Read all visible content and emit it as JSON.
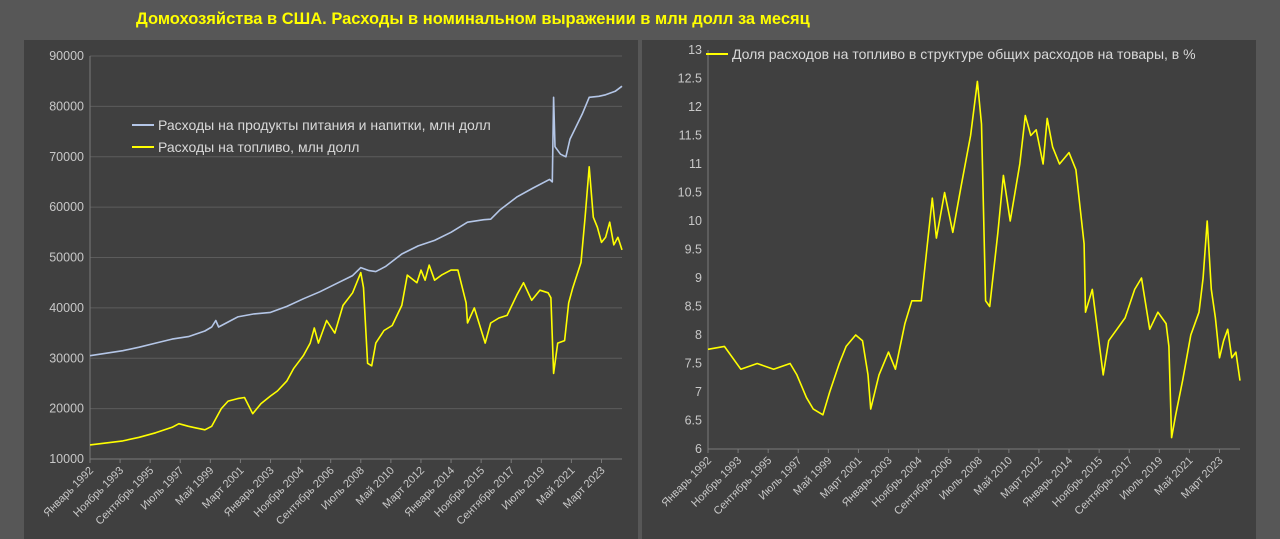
{
  "page_title": "Домохозяйства в США. Расходы в номинальном выражении в млн долл за месяц",
  "colors": {
    "food": "#b4c6e7",
    "fuel": "#ffff00",
    "background": "#404040",
    "gridline": "#5c5c5c"
  },
  "x_tick_labels": [
    "Январь 1992",
    "Ноябрь 1993",
    "Сентябрь 1995",
    "Июль 1997",
    "Май 1999",
    "Март 2001",
    "Январь 2003",
    "Ноябрь 2004",
    "Сентябрь 2006",
    "Июль 2008",
    "Май 2010",
    "Март 2012",
    "Январь 2014",
    "Ноябрь 2015",
    "Сентябрь 2017",
    "Июль 2019",
    "Май 2021",
    "Март 2023"
  ],
  "chart_data": [
    {
      "type": "line",
      "x_type": "date",
      "xlim": [
        "1992-01",
        "2024-06"
      ],
      "ylim": [
        10000,
        90000
      ],
      "yticks": [
        10000,
        20000,
        30000,
        40000,
        50000,
        60000,
        70000,
        80000,
        90000
      ],
      "grid": true,
      "legend_position": "top-left",
      "series": [
        {
          "name": "Расходы на продукты питания и напитки, млн долл",
          "color": "#b4c6e7",
          "points": [
            [
              "1992-01",
              30500
            ],
            [
              "1993-01",
              31000
            ],
            [
              "1994-01",
              31500
            ],
            [
              "1995-01",
              32200
            ],
            [
              "1996-01",
              33000
            ],
            [
              "1997-01",
              33800
            ],
            [
              "1998-01",
              34300
            ],
            [
              "1999-01",
              35400
            ],
            [
              "1999-06",
              36200
            ],
            [
              "1999-09",
              37500
            ],
            [
              "1999-11",
              36200
            ],
            [
              "2000-06",
              37200
            ],
            [
              "2001-01",
              38200
            ],
            [
              "2002-01",
              38800
            ],
            [
              "2003-01",
              39100
            ],
            [
              "2004-01",
              40300
            ],
            [
              "2005-01",
              41800
            ],
            [
              "2006-01",
              43200
            ],
            [
              "2007-01",
              44800
            ],
            [
              "2008-01",
              46400
            ],
            [
              "2008-07",
              48000
            ],
            [
              "2009-01",
              47400
            ],
            [
              "2009-06",
              47200
            ],
            [
              "2010-01",
              48200
            ],
            [
              "2011-01",
              50700
            ],
            [
              "2012-01",
              52300
            ],
            [
              "2013-01",
              53400
            ],
            [
              "2014-01",
              55000
            ],
            [
              "2015-01",
              57000
            ],
            [
              "2016-01",
              57500
            ],
            [
              "2016-06",
              57600
            ],
            [
              "2017-01",
              59500
            ],
            [
              "2018-01",
              62000
            ],
            [
              "2019-01",
              63800
            ],
            [
              "2020-01",
              65500
            ],
            [
              "2020-03",
              65000
            ],
            [
              "2020-04",
              81800
            ],
            [
              "2020-05",
              72000
            ],
            [
              "2020-09",
              70500
            ],
            [
              "2021-01",
              70000
            ],
            [
              "2021-04",
              73500
            ],
            [
              "2022-01",
              78500
            ],
            [
              "2022-06",
              81800
            ],
            [
              "2023-01",
              82000
            ],
            [
              "2023-06",
              82300
            ],
            [
              "2024-01",
              83000
            ],
            [
              "2024-06",
              84000
            ]
          ]
        },
        {
          "name": "Расходы на топливо, млн долл",
          "color": "#ffff00",
          "points": [
            [
              "1992-01",
              12800
            ],
            [
              "1993-01",
              13200
            ],
            [
              "1994-01",
              13600
            ],
            [
              "1995-01",
              14300
            ],
            [
              "1996-01",
              15200
            ],
            [
              "1997-01",
              16300
            ],
            [
              "1997-06",
              17000
            ],
            [
              "1998-01",
              16500
            ],
            [
              "1998-06",
              16200
            ],
            [
              "1999-01",
              15800
            ],
            [
              "1999-06",
              16500
            ],
            [
              "2000-01",
              20000
            ],
            [
              "2000-06",
              21500
            ],
            [
              "2001-01",
              22000
            ],
            [
              "2001-06",
              22200
            ],
            [
              "2001-12",
              19000
            ],
            [
              "2002-06",
              21000
            ],
            [
              "2003-01",
              22500
            ],
            [
              "2003-06",
              23500
            ],
            [
              "2004-01",
              25500
            ],
            [
              "2004-06",
              28000
            ],
            [
              "2005-01",
              30500
            ],
            [
              "2005-06",
              33000
            ],
            [
              "2005-09",
              36000
            ],
            [
              "2005-12",
              33000
            ],
            [
              "2006-06",
              37500
            ],
            [
              "2006-12",
              35000
            ],
            [
              "2007-06",
              40500
            ],
            [
              "2008-01",
              43000
            ],
            [
              "2008-07",
              47000
            ],
            [
              "2008-09",
              44000
            ],
            [
              "2008-12",
              29000
            ],
            [
              "2009-03",
              28500
            ],
            [
              "2009-06",
              33000
            ],
            [
              "2009-12",
              35500
            ],
            [
              "2010-06",
              36500
            ],
            [
              "2011-01",
              40500
            ],
            [
              "2011-05",
              46500
            ],
            [
              "2011-12",
              45000
            ],
            [
              "2012-03",
              47500
            ],
            [
              "2012-06",
              45500
            ],
            [
              "2012-09",
              48500
            ],
            [
              "2013-01",
              45500
            ],
            [
              "2013-06",
              46500
            ],
            [
              "2014-01",
              47500
            ],
            [
              "2014-06",
              47500
            ],
            [
              "2014-12",
              41000
            ],
            [
              "2015-01",
              37000
            ],
            [
              "2015-06",
              40000
            ],
            [
              "2016-02",
              33000
            ],
            [
              "2016-06",
              37000
            ],
            [
              "2016-12",
              38000
            ],
            [
              "2017-06",
              38500
            ],
            [
              "2018-01",
              42500
            ],
            [
              "2018-06",
              45000
            ],
            [
              "2018-12",
              41500
            ],
            [
              "2019-06",
              43500
            ],
            [
              "2019-12",
              43000
            ],
            [
              "2020-02",
              42000
            ],
            [
              "2020-04",
              27000
            ],
            [
              "2020-07",
              33000
            ],
            [
              "2020-12",
              33500
            ],
            [
              "2021-03",
              41000
            ],
            [
              "2021-06",
              44000
            ],
            [
              "2021-12",
              49000
            ],
            [
              "2022-03",
              58000
            ],
            [
              "2022-06",
              68000
            ],
            [
              "2022-09",
              58000
            ],
            [
              "2022-12",
              56000
            ],
            [
              "2023-03",
              53000
            ],
            [
              "2023-06",
              54000
            ],
            [
              "2023-09",
              57000
            ],
            [
              "2023-12",
              52500
            ],
            [
              "2024-03",
              54000
            ],
            [
              "2024-06",
              51500
            ]
          ]
        }
      ]
    },
    {
      "type": "line",
      "x_type": "date",
      "xlim": [
        "1992-01",
        "2024-06"
      ],
      "ylim": [
        6,
        13
      ],
      "yticks": [
        6,
        6.5,
        7,
        7.5,
        8,
        8.5,
        9,
        9.5,
        10,
        10.5,
        11,
        11.5,
        12,
        12.5,
        13
      ],
      "grid": false,
      "legend_position": "top",
      "series": [
        {
          "name": "Доля расходов на топливо в структуре общих расходов на товары, в %",
          "color": "#ffff00",
          "points": [
            [
              "1992-01",
              7.75
            ],
            [
              "1993-01",
              7.8
            ],
            [
              "1994-01",
              7.4
            ],
            [
              "1995-01",
              7.5
            ],
            [
              "1996-01",
              7.4
            ],
            [
              "1997-01",
              7.5
            ],
            [
              "1997-06",
              7.3
            ],
            [
              "1998-01",
              6.9
            ],
            [
              "1998-06",
              6.7
            ],
            [
              "1999-01",
              6.6
            ],
            [
              "1999-06",
              7.0
            ],
            [
              "2000-01",
              7.5
            ],
            [
              "2000-06",
              7.8
            ],
            [
              "2001-01",
              8.0
            ],
            [
              "2001-06",
              7.9
            ],
            [
              "2001-10",
              7.3
            ],
            [
              "2001-12",
              6.7
            ],
            [
              "2002-06",
              7.3
            ],
            [
              "2003-01",
              7.7
            ],
            [
              "2003-06",
              7.4
            ],
            [
              "2004-01",
              8.2
            ],
            [
              "2004-06",
              8.6
            ],
            [
              "2005-01",
              8.6
            ],
            [
              "2005-09",
              10.4
            ],
            [
              "2005-12",
              9.7
            ],
            [
              "2006-06",
              10.5
            ],
            [
              "2006-12",
              9.8
            ],
            [
              "2007-06",
              10.6
            ],
            [
              "2008-01",
              11.5
            ],
            [
              "2008-06",
              12.45
            ],
            [
              "2008-09",
              11.7
            ],
            [
              "2008-12",
              8.6
            ],
            [
              "2009-03",
              8.5
            ],
            [
              "2009-09",
              9.8
            ],
            [
              "2010-01",
              10.8
            ],
            [
              "2010-06",
              10.0
            ],
            [
              "2011-01",
              11.0
            ],
            [
              "2011-05",
              11.85
            ],
            [
              "2011-09",
              11.5
            ],
            [
              "2012-01",
              11.6
            ],
            [
              "2012-06",
              11.0
            ],
            [
              "2012-09",
              11.8
            ],
            [
              "2013-01",
              11.3
            ],
            [
              "2013-06",
              11.0
            ],
            [
              "2014-01",
              11.2
            ],
            [
              "2014-06",
              10.9
            ],
            [
              "2014-12",
              9.6
            ],
            [
              "2015-01",
              8.4
            ],
            [
              "2015-06",
              8.8
            ],
            [
              "2016-02",
              7.3
            ],
            [
              "2016-06",
              7.9
            ],
            [
              "2016-12",
              8.1
            ],
            [
              "2017-06",
              8.3
            ],
            [
              "2018-01",
              8.8
            ],
            [
              "2018-06",
              9.0
            ],
            [
              "2018-12",
              8.1
            ],
            [
              "2019-06",
              8.4
            ],
            [
              "2019-12",
              8.2
            ],
            [
              "2020-02",
              7.8
            ],
            [
              "2020-04",
              6.2
            ],
            [
              "2020-07",
              6.6
            ],
            [
              "2020-12",
              7.2
            ],
            [
              "2021-03",
              7.6
            ],
            [
              "2021-06",
              8.0
            ],
            [
              "2021-12",
              8.4
            ],
            [
              "2022-03",
              9.0
            ],
            [
              "2022-06",
              10.0
            ],
            [
              "2022-09",
              8.8
            ],
            [
              "2022-12",
              8.3
            ],
            [
              "2023-03",
              7.6
            ],
            [
              "2023-06",
              7.9
            ],
            [
              "2023-09",
              8.1
            ],
            [
              "2023-12",
              7.6
            ],
            [
              "2024-03",
              7.7
            ],
            [
              "2024-06",
              7.2
            ]
          ]
        }
      ]
    }
  ]
}
